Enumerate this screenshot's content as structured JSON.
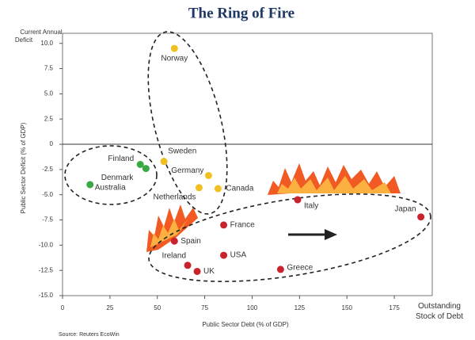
{
  "chart_data": {
    "type": "scatter",
    "title": "The Ring of Fire",
    "y_annotation": [
      "Current Annual",
      "Deficit"
    ],
    "x_annotation": [
      "Outstanding",
      "Stock of Debt"
    ],
    "xlabel": "Public Sector Debt (% of GDP)",
    "ylabel": "Public Sector Deficit (% of GDP)",
    "source": "Source: Reuters EcoWin",
    "xlim": [
      0,
      195
    ],
    "ylim": [
      -15,
      11
    ],
    "xticks": [
      0,
      25,
      50,
      75,
      100,
      125,
      150,
      175
    ],
    "yticks": [
      {
        "value": 10,
        "label": "10.0"
      },
      7.5,
      {
        "value": 5,
        "label": "5.0"
      },
      2.5,
      0,
      -2.5,
      {
        "value": -5,
        "label": "-5.0"
      },
      -7.5,
      {
        "value": -10,
        "label": "-10.0"
      },
      -12.5,
      {
        "value": -15,
        "label": "-15.0"
      }
    ],
    "series": [
      {
        "color": "#3aa845",
        "labels": [
          "Finland",
          "Denmark",
          "Australia"
        ],
        "x": [
          41,
          44,
          14.5
        ],
        "y": [
          -2.0,
          -2.4,
          -4.0
        ]
      },
      {
        "color": "#f0c020",
        "labels": [
          "Norway",
          "Sweden",
          "Germany",
          "Netherlands",
          "Canada"
        ],
        "x": [
          59,
          53.5,
          77,
          72,
          82
        ],
        "y": [
          9.5,
          -1.7,
          -3.1,
          -4.3,
          -4.4
        ]
      },
      {
        "color": "#c8232c",
        "labels": [
          "Italy",
          "Japan",
          "France",
          "Spain",
          "USA",
          "Ireland",
          "UK",
          "Greece"
        ],
        "x": [
          124,
          189,
          85,
          59,
          85,
          66,
          71,
          115
        ],
        "y": [
          -5.5,
          -7.2,
          -8.0,
          -9.6,
          -11.0,
          -12.0,
          -12.6,
          -12.4
        ]
      }
    ]
  }
}
